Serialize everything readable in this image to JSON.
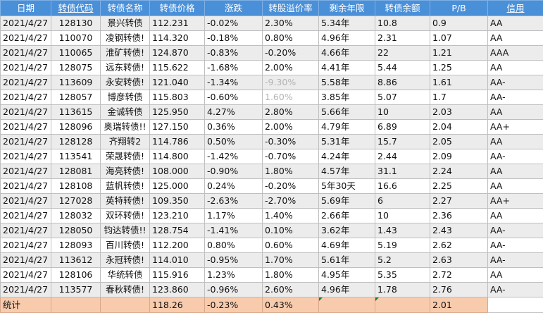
{
  "headers": [
    "日期",
    "转债代码",
    "转债名称",
    "转债价格",
    "涨跌",
    "转股溢价率",
    "剩余年限",
    "转债余额",
    "P/B",
    "信用"
  ],
  "rows": [
    [
      "2021/4/27",
      "128130",
      "景兴转债",
      "112.231",
      "-0.02%",
      "2.30%",
      "5.34年",
      "10.8",
      "0.9",
      "AA"
    ],
    [
      "2021/4/27",
      "110070",
      "凌钢转债!",
      "114.320",
      "-0.18%",
      "0.80%",
      "4.96年",
      "2.31",
      "1.07",
      "AA"
    ],
    [
      "2021/4/27",
      "110065",
      "淮矿转债!",
      "124.870",
      "-0.83%",
      "-0.20%",
      "4.66年",
      "22",
      "1.21",
      "AAA"
    ],
    [
      "2021/4/27",
      "128075",
      "远东转债!",
      "115.622",
      "-1.68%",
      "2.00%",
      "4.41年",
      "5.44",
      "1.25",
      "AA"
    ],
    [
      "2021/4/27",
      "113609",
      "永安转债!",
      "121.040",
      "-1.34%",
      "-9.30%",
      "5.58年",
      "8.86",
      "1.61",
      "AA-"
    ],
    [
      "2021/4/27",
      "128057",
      "博彦转债",
      "115.803",
      "-0.60%",
      "1.60%",
      "3.85年",
      "5.07",
      "1.7",
      "AA-"
    ],
    [
      "2021/4/27",
      "113615",
      "金诚转债",
      "125.950",
      "4.27%",
      "2.80%",
      "5.66年",
      "10",
      "2.03",
      "AA"
    ],
    [
      "2021/4/27",
      "128096",
      "奥瑞转债!!",
      "127.150",
      "0.36%",
      "2.00%",
      "4.79年",
      "6.89",
      "2.04",
      "AA+"
    ],
    [
      "2021/4/27",
      "128128",
      "齐翔转2",
      "114.786",
      "0.50%",
      "-0.30%",
      "5.31年",
      "15.7",
      "2.05",
      "AA"
    ],
    [
      "2021/4/27",
      "113541",
      "荣晟转债!",
      "114.800",
      "-1.42%",
      "-0.70%",
      "4.24年",
      "2.44",
      "2.09",
      "AA-"
    ],
    [
      "2021/4/27",
      "128081",
      "海亮转债!",
      "108.000",
      "-0.90%",
      "1.80%",
      "4.57年",
      "31.1",
      "2.24",
      "AA"
    ],
    [
      "2021/4/27",
      "128108",
      "蓝帆转债!",
      "125.000",
      "0.24%",
      "-0.20%",
      "5年30天",
      "16.6",
      "2.25",
      "AA"
    ],
    [
      "2021/4/27",
      "127028",
      "英特转债!",
      "109.350",
      "-2.63%",
      "-2.70%",
      "5.69年",
      "6",
      "2.27",
      "AA+"
    ],
    [
      "2021/4/27",
      "128032",
      "双环转债!",
      "123.210",
      "1.17%",
      "1.40%",
      "2.66年",
      "10",
      "2.36",
      "AA"
    ],
    [
      "2021/4/27",
      "128050",
      "钧达转债!!",
      "128.754",
      "-1.41%",
      "0.10%",
      "3.62年",
      "1.43",
      "2.43",
      "AA-"
    ],
    [
      "2021/4/27",
      "128093",
      "百川转债!",
      "112.200",
      "0.80%",
      "0.60%",
      "4.69年",
      "5.19",
      "2.62",
      "AA-"
    ],
    [
      "2021/4/27",
      "113612",
      "永冠转债!",
      "114.010",
      "-0.95%",
      "1.70%",
      "5.61年",
      "5.2",
      "2.63",
      "AA-"
    ],
    [
      "2021/4/27",
      "128106",
      "华统转债",
      "115.916",
      "1.23%",
      "1.80%",
      "4.95年",
      "5.35",
      "2.72",
      "AA"
    ],
    [
      "2021/4/27",
      "113577",
      "春秋转债!",
      "123.860",
      "-0.96%",
      "2.60%",
      "4.96年",
      "1.78",
      "2.76",
      "AA-"
    ]
  ],
  "totals": {
    "label": "统计",
    "price": "118.26",
    "change": "-0.23%",
    "premium": "0.43%",
    "pb": "2.01"
  },
  "colors": {
    "header_bg": "#4a90d9",
    "footer_bg": "#f8cbad",
    "muted_text": "#b3b3b3"
  }
}
